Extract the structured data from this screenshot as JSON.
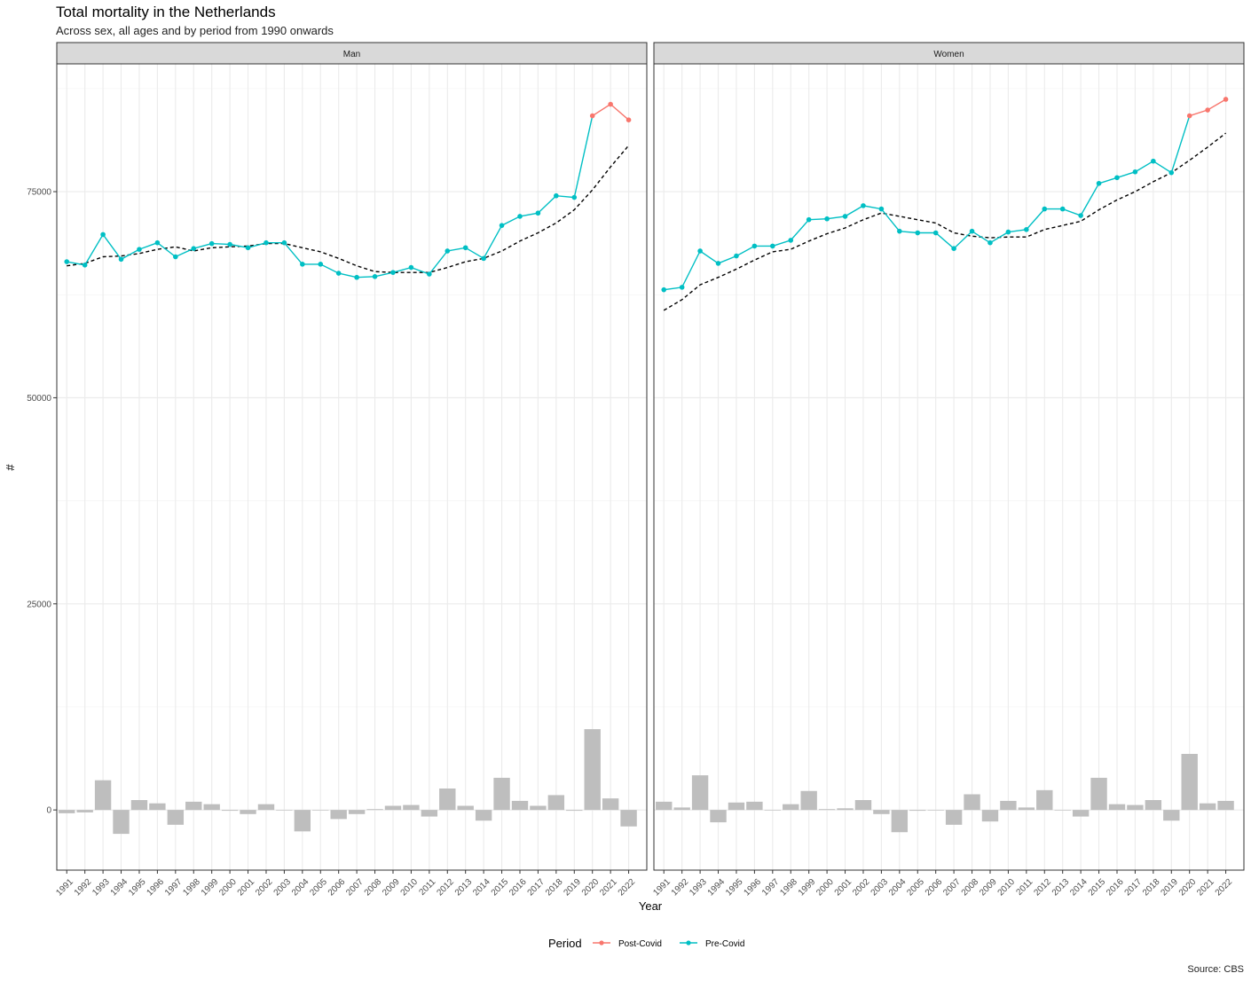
{
  "title": "Total mortality in the Netherlands",
  "subtitle": "Across sex, all ages and by period from 1990 onwards",
  "caption": "Source: CBS",
  "colors": {
    "post_covid": "#F8766D",
    "pre_covid": "#00BFC4",
    "bars": "#BEBEBE",
    "trend": "#000000",
    "strip": "#D9D9D9",
    "grid": "#EBEBEB"
  },
  "chart_data": {
    "type": "line",
    "xlabel": "Year",
    "ylabel": "#",
    "ylim": [
      -7300,
      90500
    ],
    "y_ticks": [
      0,
      25000,
      50000,
      75000
    ],
    "y_tick_labels": [
      "0",
      "25000",
      "50000",
      "75000"
    ],
    "years": [
      "1991",
      "1992",
      "1993",
      "1994",
      "1995",
      "1996",
      "1997",
      "1998",
      "1999",
      "2000",
      "2001",
      "2002",
      "2003",
      "2004",
      "2005",
      "2006",
      "2007",
      "2008",
      "2009",
      "2010",
      "2011",
      "2012",
      "2013",
      "2014",
      "2015",
      "2016",
      "2017",
      "2018",
      "2019",
      "2020",
      "2021",
      "2022"
    ],
    "legend": {
      "title": "Period",
      "position": "bottom",
      "entries": [
        {
          "label": "Post-Covid",
          "color": "#F8766D"
        },
        {
          "label": "Pre-Covid",
          "color": "#00BFC4"
        }
      ]
    },
    "facets": [
      {
        "label": "Man",
        "observed": [
          66500,
          66100,
          69800,
          66800,
          68000,
          68800,
          67100,
          68100,
          68700,
          68600,
          68200,
          68800,
          68800,
          66200,
          66200,
          65100,
          64600,
          64700,
          65200,
          65800,
          65000,
          67800,
          68200,
          66900,
          70900,
          72000,
          72400,
          74500,
          74300,
          84200,
          85600,
          83700
        ],
        "period": [
          "Pre-Covid",
          "Pre-Covid",
          "Pre-Covid",
          "Pre-Covid",
          "Pre-Covid",
          "Pre-Covid",
          "Pre-Covid",
          "Pre-Covid",
          "Pre-Covid",
          "Pre-Covid",
          "Pre-Covid",
          "Pre-Covid",
          "Pre-Covid",
          "Pre-Covid",
          "Pre-Covid",
          "Pre-Covid",
          "Pre-Covid",
          "Pre-Covid",
          "Pre-Covid",
          "Pre-Covid",
          "Pre-Covid",
          "Pre-Covid",
          "Pre-Covid",
          "Pre-Covid",
          "Pre-Covid",
          "Pre-Covid",
          "Pre-Covid",
          "Pre-Covid",
          "Pre-Covid",
          "Post-Covid",
          "Post-Covid",
          "Post-Covid"
        ],
        "expected": [
          66000,
          66300,
          67100,
          67200,
          67500,
          68000,
          68300,
          67800,
          68200,
          68300,
          68400,
          68700,
          68700,
          68200,
          67700,
          66900,
          66000,
          65300,
          65200,
          65200,
          65200,
          65800,
          66500,
          66900,
          67800,
          69000,
          70000,
          71200,
          72800,
          75200,
          78000,
          80600
        ],
        "difference": [
          -400,
          -300,
          3600,
          -2900,
          1200,
          800,
          -1800,
          1000,
          700,
          -100,
          -500,
          700,
          0,
          -2600,
          0,
          -1100,
          -500,
          100,
          500,
          600,
          -800,
          2600,
          500,
          -1300,
          3900,
          1100,
          500,
          1800,
          -100,
          9800,
          1400,
          -2000
        ]
      },
      {
        "label": "Women",
        "observed": [
          63100,
          63400,
          67800,
          66300,
          67200,
          68400,
          68400,
          69100,
          71600,
          71700,
          72000,
          73300,
          72900,
          70200,
          70000,
          70000,
          68100,
          70200,
          68800,
          70100,
          70400,
          72900,
          72900,
          72100,
          76000,
          76700,
          77400,
          78700,
          77300,
          84200,
          84900,
          86200
        ],
        "period": [
          "Pre-Covid",
          "Pre-Covid",
          "Pre-Covid",
          "Pre-Covid",
          "Pre-Covid",
          "Pre-Covid",
          "Pre-Covid",
          "Pre-Covid",
          "Pre-Covid",
          "Pre-Covid",
          "Pre-Covid",
          "Pre-Covid",
          "Pre-Covid",
          "Pre-Covid",
          "Pre-Covid",
          "Pre-Covid",
          "Pre-Covid",
          "Pre-Covid",
          "Pre-Covid",
          "Pre-Covid",
          "Pre-Covid",
          "Pre-Covid",
          "Pre-Covid",
          "Pre-Covid",
          "Pre-Covid",
          "Pre-Covid",
          "Pre-Covid",
          "Pre-Covid",
          "Pre-Covid",
          "Post-Covid",
          "Post-Covid",
          "Post-Covid"
        ],
        "expected": [
          60600,
          61900,
          63700,
          64600,
          65600,
          66700,
          67700,
          68000,
          69000,
          69900,
          70600,
          71600,
          72400,
          72000,
          71600,
          71200,
          70000,
          69600,
          69400,
          69500,
          69500,
          70400,
          70900,
          71400,
          72800,
          74000,
          75000,
          76200,
          77300,
          78800,
          80400,
          82100
        ],
        "difference": [
          1000,
          300,
          4200,
          -1500,
          900,
          1000,
          0,
          700,
          2300,
          100,
          200,
          1200,
          -500,
          -2700,
          -100,
          0,
          -1800,
          1900,
          -1400,
          1100,
          300,
          2400,
          0,
          -800,
          3900,
          700,
          600,
          1200,
          -1300,
          6800,
          800,
          1100
        ]
      }
    ]
  }
}
